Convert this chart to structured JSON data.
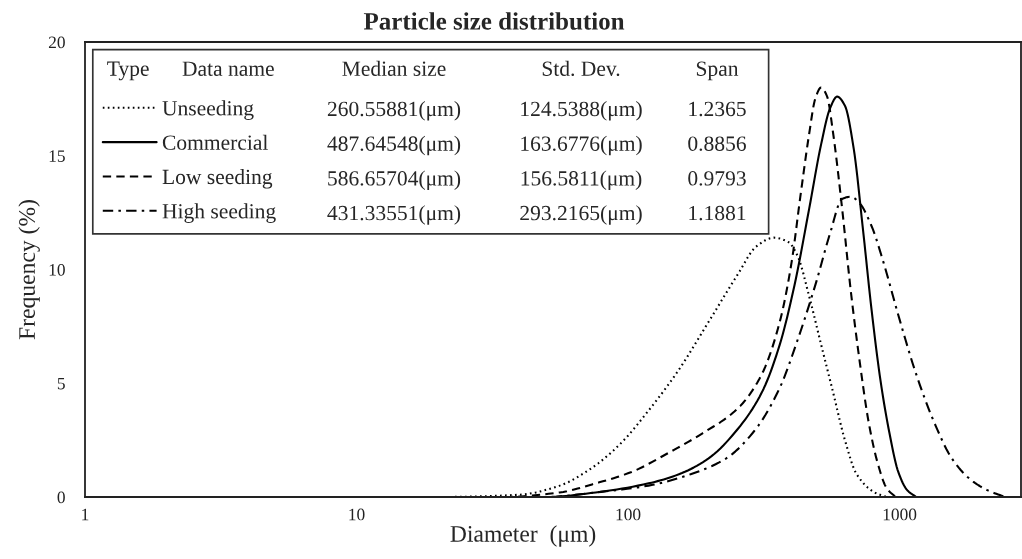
{
  "chart_data": {
    "type": "line",
    "title": "Particle size distribution",
    "xlabel": "Diameter  (μm)",
    "ylabel": "Frequency (%)",
    "log": "x",
    "xlim": [
      1,
      2800
    ],
    "xticks": [
      1,
      10,
      100,
      1000
    ],
    "ylim": [
      0,
      20
    ],
    "yticks": [
      0,
      5,
      10,
      15,
      20
    ],
    "legend": "top left",
    "annotations": [
      "Type",
      "Data name",
      "Median size",
      "Std. Dev.",
      "Span",
      "260.55881(μm)",
      "124.5388(μm)",
      "1.2365",
      "487.64548(μm)",
      "163.6776(μm)",
      "0.8856",
      "586.65704(μm)",
      "156.5811(μm)",
      "0.9793",
      "431.33551(μm)",
      "293.2165(μm)",
      "1.1881"
    ],
    "series": [
      {
        "name": "Unseeding",
        "color": "#000000",
        "line_style": "dotted",
        "x": [
          1,
          20,
          40,
          56,
          72,
          93,
          119,
          154,
          198,
          254,
          296,
          344,
          390,
          421,
          465,
          514,
          569,
          629,
          695,
          809,
          895
        ],
        "values": [
          0,
          0,
          0.1,
          0.5,
          1.2,
          2.3,
          3.8,
          5.6,
          7.7,
          9.8,
          11.0,
          11.4,
          11.2,
          10.6,
          8.8,
          6.7,
          4.6,
          2.5,
          1.0,
          0.2,
          0
        ]
      },
      {
        "name": "Commercial",
        "color": "#000000",
        "line_style": "solid",
        "x": [
          1,
          50,
          76,
          119,
          154,
          198,
          254,
          311,
          362,
          410,
          465,
          514,
          555,
          589,
          629,
          678,
          731,
          789,
          851,
          918,
          989,
          1067,
          1151
        ],
        "values": [
          0,
          0,
          0.2,
          0.6,
          1.0,
          1.7,
          3.0,
          4.6,
          6.7,
          9.3,
          12.7,
          15.5,
          17.1,
          17.6,
          17.2,
          15.3,
          11.9,
          8.2,
          5.1,
          2.8,
          1.1,
          0.3,
          0
        ]
      },
      {
        "name": "Low seeding",
        "color": "#000000",
        "line_style": "dashed",
        "x": [
          1,
          35,
          56,
          76,
          103,
          139,
          188,
          254,
          311,
          362,
          400,
          431,
          465,
          489,
          514,
          541,
          569,
          614,
          662,
          714,
          769,
          830,
          895,
          966
        ],
        "values": [
          0,
          0,
          0.2,
          0.6,
          1.1,
          1.9,
          2.8,
          3.9,
          5.4,
          7.7,
          10.3,
          13.2,
          16.0,
          17.5,
          18.0,
          17.6,
          16.0,
          12.7,
          9.0,
          5.9,
          3.3,
          1.5,
          0.4,
          0
        ]
      },
      {
        "name": "High seeding",
        "color": "#000000",
        "line_style": "dashdot",
        "x": [
          1,
          50,
          76,
          119,
          170,
          230,
          296,
          362,
          421,
          489,
          555,
          614,
          662,
          714,
          789,
          873,
          989,
          1151,
          1339,
          1557,
          1811,
          2105,
          2449
        ],
        "values": [
          0,
          0,
          0.2,
          0.5,
          1.0,
          1.7,
          3.0,
          4.8,
          6.9,
          9.3,
          11.6,
          13.1,
          13.2,
          12.9,
          11.9,
          10.3,
          8.0,
          5.4,
          3.3,
          1.7,
          0.8,
          0.3,
          0
        ]
      }
    ]
  }
}
